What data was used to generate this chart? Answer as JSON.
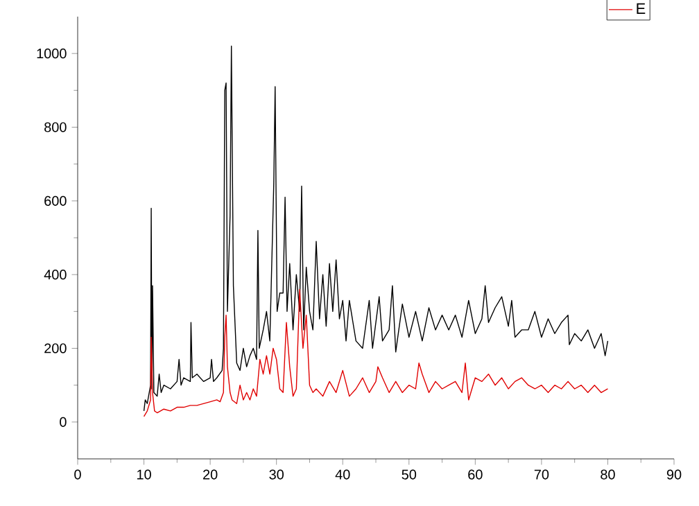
{
  "chart_data": {
    "type": "line",
    "xlim": [
      0,
      90
    ],
    "ylim": [
      -100,
      1100
    ],
    "xticks": [
      0,
      10,
      20,
      30,
      40,
      50,
      60,
      70,
      80,
      90
    ],
    "yticks": [
      0,
      200,
      400,
      600,
      800,
      1000
    ],
    "legend": "top right",
    "grid": false,
    "marker": "none",
    "line_style": "solid",
    "series": [
      {
        "color": "#000000",
        "x": [
          10,
          10.2,
          10.5,
          11,
          11.1,
          11.2,
          11.3,
          11.5,
          12,
          12.3,
          12.6,
          13,
          14,
          15,
          15.3,
          15.6,
          16,
          17,
          17.1,
          17.3,
          18,
          19,
          20,
          20.2,
          20.5,
          21,
          21.8,
          22,
          22.2,
          22.4,
          22.6,
          23,
          23.2,
          23.5,
          24,
          24.5,
          25,
          25.5,
          26,
          26.5,
          27,
          27.2,
          27.4,
          28,
          28.5,
          29,
          29.6,
          29.8,
          30.1,
          30.5,
          31,
          31.3,
          31.6,
          32,
          32.5,
          33,
          33.5,
          33.8,
          34.1,
          34.5,
          35,
          35.5,
          36,
          36.5,
          37,
          37.5,
          38,
          38.5,
          39,
          39.5,
          40,
          40.5,
          41,
          42,
          43,
          44,
          44.5,
          45.5,
          46,
          47,
          47.5,
          48,
          49,
          50,
          51,
          52,
          53,
          54,
          55,
          56,
          57,
          58,
          59,
          60,
          61,
          61.5,
          62,
          63,
          64,
          65,
          65.5,
          66,
          67,
          68,
          69,
          70,
          71,
          72,
          73,
          74,
          74.2,
          75,
          76,
          77,
          78,
          79,
          79.6,
          80
        ],
        "values": [
          30,
          60,
          50,
          100,
          580,
          90,
          370,
          80,
          70,
          130,
          80,
          100,
          90,
          110,
          170,
          100,
          120,
          110,
          270,
          120,
          130,
          110,
          120,
          170,
          110,
          120,
          140,
          200,
          900,
          920,
          300,
          560,
          1020,
          370,
          160,
          140,
          200,
          150,
          180,
          200,
          170,
          520,
          200,
          250,
          300,
          220,
          650,
          910,
          300,
          350,
          350,
          610,
          300,
          430,
          250,
          400,
          300,
          640,
          250,
          420,
          300,
          250,
          490,
          280,
          400,
          260,
          430,
          300,
          440,
          280,
          330,
          220,
          330,
          220,
          200,
          330,
          200,
          340,
          220,
          250,
          370,
          190,
          320,
          230,
          300,
          220,
          310,
          250,
          290,
          250,
          290,
          230,
          330,
          240,
          280,
          370,
          270,
          310,
          340,
          260,
          330,
          230,
          250,
          250,
          300,
          230,
          280,
          240,
          270,
          290,
          210,
          240,
          220,
          250,
          200,
          240,
          180,
          220
        ]
      },
      {
        "name": "E",
        "color": "#e00000",
        "x": [
          10,
          10.5,
          11,
          11.1,
          11.3,
          11.6,
          12,
          13,
          14,
          15,
          16,
          17,
          18,
          19,
          20,
          21,
          21.5,
          22,
          22.2,
          22.4,
          22.6,
          23,
          23.3,
          24,
          24.5,
          25,
          25.5,
          26,
          26.5,
          27,
          27.5,
          28,
          28.5,
          29,
          29.5,
          30,
          30.5,
          31,
          31.5,
          32,
          32.5,
          33,
          33.5,
          34,
          34.5,
          35,
          35.5,
          36,
          37,
          38,
          39,
          40,
          41,
          42,
          43,
          44,
          45,
          45.3,
          46,
          47,
          48,
          49,
          50,
          51,
          51.5,
          52,
          53,
          54,
          55,
          56,
          57,
          58,
          58.5,
          59,
          60,
          61,
          62,
          63,
          64,
          65,
          66,
          67,
          68,
          69,
          70,
          71,
          72,
          73,
          74,
          75,
          76,
          77,
          78,
          79,
          80
        ],
        "values": [
          15,
          30,
          60,
          230,
          80,
          30,
          25,
          35,
          30,
          40,
          40,
          45,
          45,
          50,
          55,
          60,
          55,
          80,
          230,
          290,
          150,
          80,
          60,
          50,
          100,
          60,
          80,
          60,
          90,
          70,
          170,
          130,
          180,
          130,
          200,
          170,
          90,
          80,
          270,
          150,
          70,
          90,
          360,
          200,
          290,
          100,
          80,
          90,
          70,
          110,
          80,
          140,
          70,
          90,
          120,
          80,
          110,
          150,
          120,
          80,
          110,
          80,
          100,
          90,
          160,
          130,
          80,
          110,
          90,
          100,
          110,
          80,
          160,
          60,
          120,
          110,
          130,
          100,
          120,
          90,
          110,
          120,
          100,
          90,
          100,
          80,
          100,
          90,
          110,
          90,
          100,
          80,
          100,
          80,
          90
        ]
      }
    ]
  }
}
